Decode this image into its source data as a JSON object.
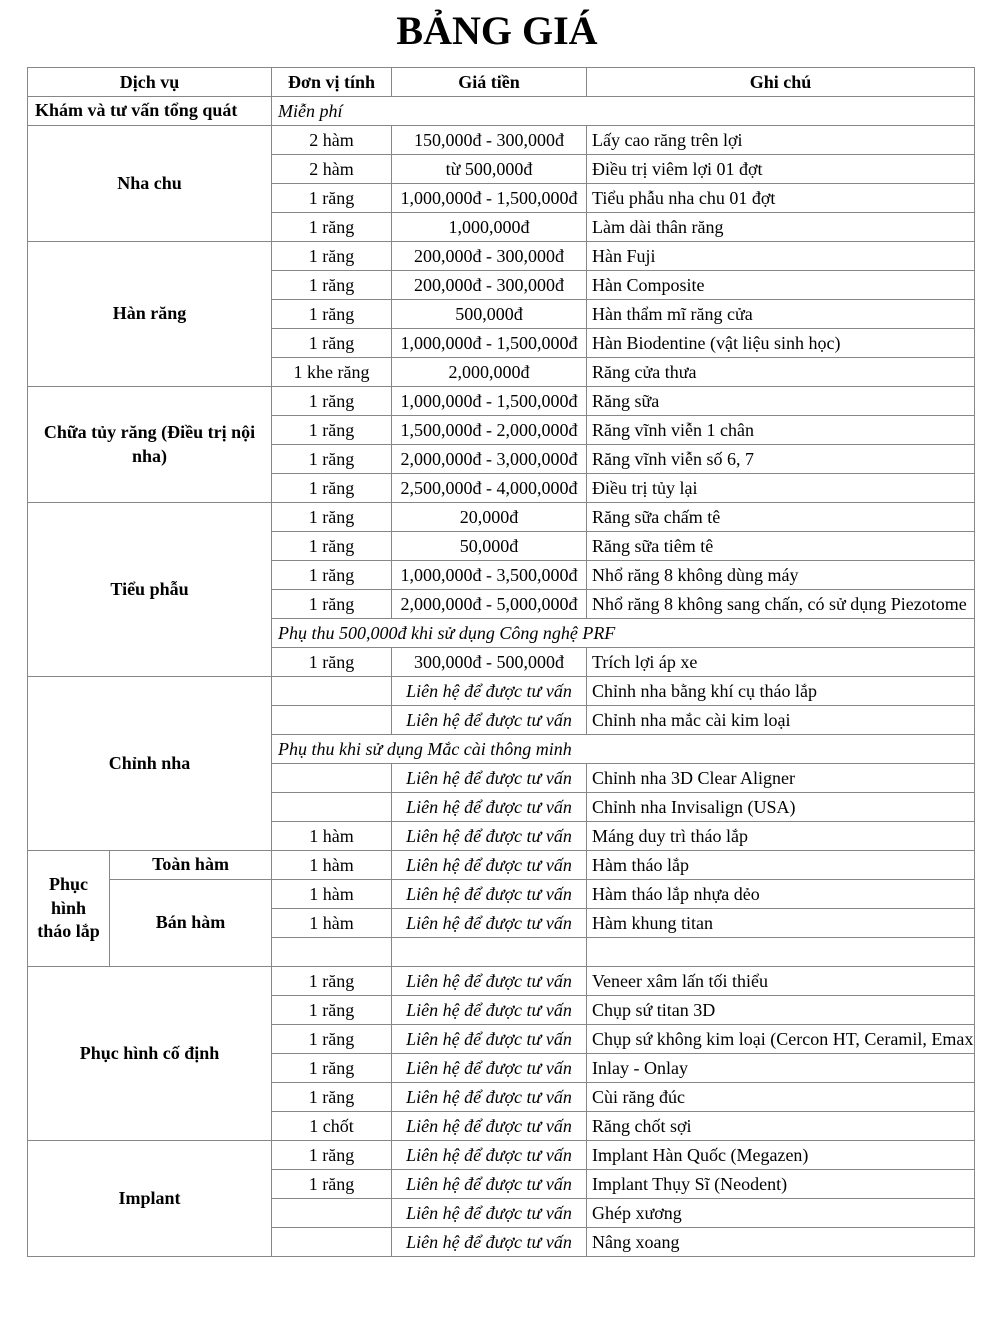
{
  "title": "BẢNG GIÁ",
  "colors": {
    "border": "#878787",
    "text": "#000000",
    "background": "#ffffff"
  },
  "table": {
    "columns": [
      "Dịch vụ",
      "Đơn vị tính",
      "Giá tiền",
      "Ghi chú"
    ],
    "sections": [
      {
        "service": "Khám và tư vấn tổng quát",
        "align": "left",
        "rows": [
          {
            "note_span": "Miễn phí"
          }
        ]
      },
      {
        "service": "Nha chu",
        "rows": [
          {
            "unit": "2 hàm",
            "price": "150,000đ - 300,000đ",
            "note": "Lấy cao răng trên lợi"
          },
          {
            "unit": "2 hàm",
            "price": "từ 500,000đ",
            "note": "Điều trị viêm lợi 01 đợt"
          },
          {
            "unit": "1 răng",
            "price": "1,000,000đ - 1,500,000đ",
            "note": "Tiểu phẫu nha chu 01 đợt"
          },
          {
            "unit": "1 răng",
            "price": "1,000,000đ",
            "note": "Làm dài thân răng"
          }
        ]
      },
      {
        "service": "Hàn răng",
        "rows": [
          {
            "unit": "1 răng",
            "price": "200,000đ - 300,000đ",
            "note": "Hàn Fuji"
          },
          {
            "unit": "1 răng",
            "price": "200,000đ - 300,000đ",
            "note": "Hàn Composite"
          },
          {
            "unit": "1 răng",
            "price": "500,000đ",
            "note": "Hàn thẩm mĩ răng cửa"
          },
          {
            "unit": "1 răng",
            "price": "1,000,000đ - 1,500,000đ",
            "note": "Hàn Biodentine (vật liệu sinh học)"
          },
          {
            "unit": "1 khe răng",
            "price": "2,000,000đ",
            "note": "Răng cửa thưa"
          }
        ]
      },
      {
        "service": "Chữa tủy răng (Điều trị nội nha)",
        "rows": [
          {
            "unit": "1 răng",
            "price": "1,000,000đ - 1,500,000đ",
            "note": "Răng sữa"
          },
          {
            "unit": "1 răng",
            "price": "1,500,000đ - 2,000,000đ",
            "note": "Răng vĩnh viễn 1 chân"
          },
          {
            "unit": "1 răng",
            "price": "2,000,000đ - 3,000,000đ",
            "note": "Răng vĩnh viễn số 6, 7"
          },
          {
            "unit": "1 răng",
            "price": "2,500,000đ - 4,000,000đ",
            "note": "Điều trị tủy lại"
          }
        ]
      },
      {
        "service": "Tiểu phẫu",
        "rows": [
          {
            "unit": "1 răng",
            "price": "20,000đ",
            "note": "Răng sữa chấm tê"
          },
          {
            "unit": "1 răng",
            "price": "50,000đ",
            "note": "Răng sữa tiêm tê"
          },
          {
            "unit": "1 răng",
            "price": "1,000,000đ - 3,500,000đ",
            "note": "Nhổ răng 8 không dùng máy"
          },
          {
            "unit": "1 răng",
            "price": "2,000,000đ - 5,000,000đ",
            "note": "Nhổ răng 8 không sang chấn, có sử dụng Piezotome"
          },
          {
            "note_span": "Phụ thu 500,000đ khi sử dụng Công nghệ PRF"
          },
          {
            "unit": "1 răng",
            "price": "300,000đ - 500,000đ",
            "note": "Trích lợi áp xe"
          }
        ]
      },
      {
        "service": "Chỉnh nha",
        "rows": [
          {
            "unit": "",
            "price": "Liên hệ để được tư vấn",
            "italic": true,
            "note": "Chỉnh nha bằng khí cụ tháo lắp"
          },
          {
            "unit": "",
            "price": "Liên hệ để được tư vấn",
            "italic": true,
            "note": "Chỉnh nha mắc cài kim loại"
          },
          {
            "note_span": "Phụ thu khi sử dụng Mắc cài thông minh"
          },
          {
            "unit": "",
            "price": "Liên hệ để được tư vấn",
            "italic": true,
            "note": "Chỉnh nha 3D Clear Aligner"
          },
          {
            "unit": "",
            "price": "Liên hệ để được tư vấn",
            "italic": true,
            "note": "Chỉnh nha Invisalign (USA)"
          },
          {
            "unit": "1 hàm",
            "price": "Liên hệ để được tư vấn",
            "italic": true,
            "note": "Máng duy trì tháo lắp"
          }
        ]
      },
      {
        "service": "Phục hình tháo lắp",
        "subgroups": [
          {
            "label": "Toàn hàm",
            "rows": [
              {
                "unit": "1 hàm",
                "price": "Liên hệ để được tư vấn",
                "italic": true,
                "note": "Hàm tháo lắp"
              }
            ]
          },
          {
            "label": "Bán hàm",
            "rows": [
              {
                "unit": "1 hàm",
                "price": "Liên hệ để được tư vấn",
                "italic": true,
                "note": "Hàm tháo lắp nhựa dẻo"
              },
              {
                "unit": "1 hàm",
                "price": "Liên hệ để được tư vấn",
                "italic": true,
                "note": "Hàm khung titan"
              },
              {
                "unit": "",
                "price": "",
                "note": ""
              }
            ]
          }
        ]
      },
      {
        "service": "Phục hình cố định",
        "rows": [
          {
            "unit": "1 răng",
            "price": "Liên hệ để được tư vấn",
            "italic": true,
            "note": "Veneer xâm lấn tối thiểu"
          },
          {
            "unit": "1 răng",
            "price": "Liên hệ để được tư vấn",
            "italic": true,
            "note": "Chụp sứ titan 3D"
          },
          {
            "unit": "1 răng",
            "price": "Liên hệ để được tư vấn",
            "italic": true,
            "note": "Chụp sứ không kim loại (Cercon HT, Ceramil, Emax)"
          },
          {
            "unit": "1 răng",
            "price": "Liên hệ để được tư vấn",
            "italic": true,
            "note": "Inlay - Onlay"
          },
          {
            "unit": "1 răng",
            "price": "Liên hệ để được tư vấn",
            "italic": true,
            "note": "Cùi răng đúc"
          },
          {
            "unit": "1 chốt",
            "price": "Liên hệ để được tư vấn",
            "italic": true,
            "note": "Răng chốt sợi"
          }
        ]
      },
      {
        "service": "Implant",
        "rows": [
          {
            "unit": "1 răng",
            "price": "Liên hệ để được tư vấn",
            "italic": true,
            "note": "Implant Hàn Quốc (Megazen)"
          },
          {
            "unit": "1 răng",
            "price": "Liên hệ để được tư vấn",
            "italic": true,
            "note": "Implant Thụy Sĩ (Neodent)"
          },
          {
            "unit": "",
            "price": "Liên hệ để được tư vấn",
            "italic": true,
            "note": "Ghép xương"
          },
          {
            "unit": "",
            "price": "Liên hệ để được tư vấn",
            "italic": true,
            "note": "Nâng xoang"
          }
        ]
      }
    ]
  }
}
